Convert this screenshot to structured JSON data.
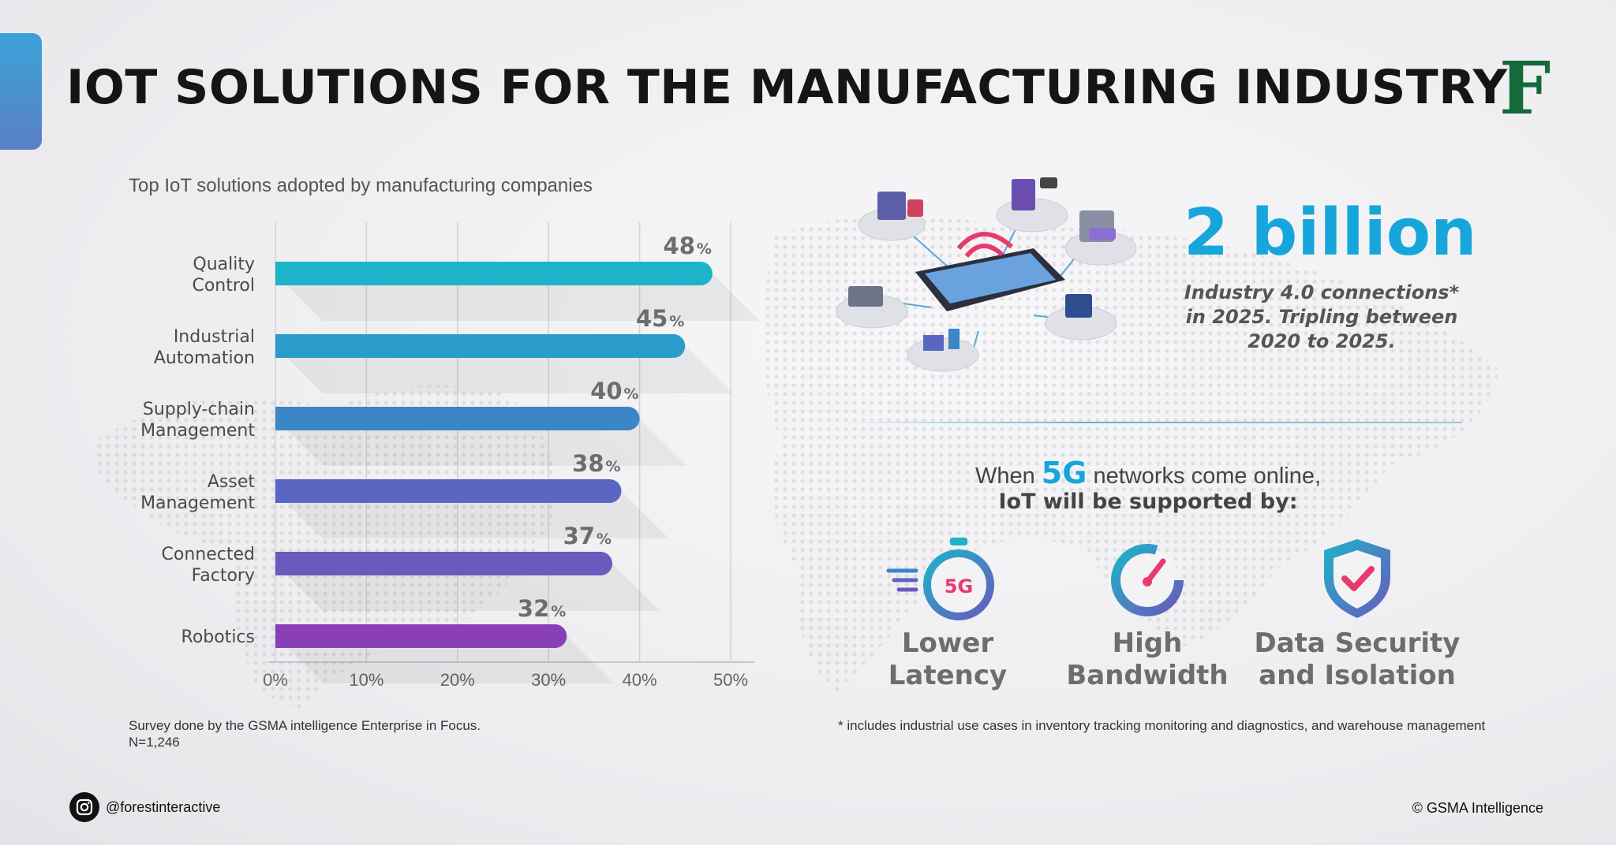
{
  "header": {
    "title": "IOT SOLUTIONS FOR THE MANUFACTURING INDUSTRY",
    "logo_letter": "F"
  },
  "chart_subtitle": "Top IoT solutions adopted by manufacturing companies",
  "chart_data": {
    "type": "bar",
    "orientation": "horizontal",
    "title": "Top IoT solutions adopted by manufacturing companies",
    "categories": [
      [
        "Quality",
        "Control"
      ],
      [
        "Industrial",
        "Automation"
      ],
      [
        "Supply-chain",
        "Management"
      ],
      [
        "Asset",
        "Management"
      ],
      [
        "Connected",
        "Factory"
      ],
      [
        "Robotics"
      ]
    ],
    "values": [
      48,
      45,
      40,
      38,
      37,
      32
    ],
    "value_labels": [
      "48",
      "45",
      "40",
      "38",
      "37",
      "32"
    ],
    "value_suffix": "%",
    "xlim": [
      0,
      50
    ],
    "xticks": [
      "0%",
      "10%",
      "20%",
      "30%",
      "40%",
      "50%"
    ],
    "grid": true,
    "bar_colors": [
      "#1db3c9",
      "#2a9ccb",
      "#3a86c6",
      "#5a67c2",
      "#6b59bd",
      "#8a3fb8"
    ]
  },
  "survey_note": [
    "Survey done by the GSMA intelligence Enterprise in Focus.",
    "N=1,246"
  ],
  "stat": {
    "number": "2 billion",
    "desc_lines": [
      "Industry 4.0 connections*",
      "in 2025. Tripling between",
      "2020 to 2025."
    ]
  },
  "g5": {
    "line1_pre": "When ",
    "line1_hl": "5G",
    "line1_post": " networks come online,",
    "line2": "IoT will be supported by:"
  },
  "features": [
    {
      "icon": "stopwatch-5g-icon",
      "badge": "5G",
      "label_lines": [
        "Lower",
        "Latency"
      ]
    },
    {
      "icon": "speedometer-icon",
      "label_lines": [
        "High",
        "Bandwidth"
      ]
    },
    {
      "icon": "shield-check-icon",
      "label_lines": [
        "Data Security",
        "and Isolation"
      ]
    }
  ],
  "footnote": "* includes industrial use cases in inventory tracking monitoring and diagnostics, and warehouse management",
  "footer": {
    "social_icon": "instagram-icon",
    "handle": "@forestinteractive",
    "copyright": "© GSMA Intelligence"
  },
  "colors": {
    "accent_blue": "#16a6dc",
    "logo_green": "#136b3a",
    "feature_gray": "#6d6d6d"
  }
}
